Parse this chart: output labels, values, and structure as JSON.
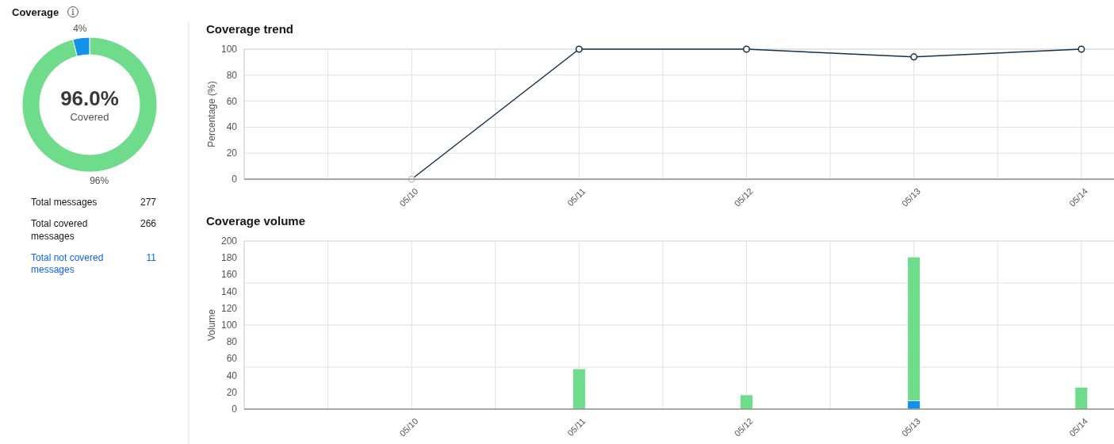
{
  "chart_data": [
    {
      "type": "donut",
      "title": "Coverage",
      "categories": [
        null,
        null
      ],
      "values": [
        96,
        4
      ],
      "colors": [
        "#6fdc8c",
        "#1192e8"
      ],
      "value_labels": [
        "96%",
        "4%"
      ],
      "annotations": [
        "96.0%",
        "Covered"
      ]
    },
    {
      "type": "other",
      "categories": [
        "Total messages",
        "Total covered messages",
        "Total not covered messages"
      ],
      "values": [
        277,
        266,
        11
      ],
      "colors": [
        "#161616",
        "#161616",
        "#0f62fe"
      ],
      "data_labels": true
    },
    {
      "type": "line",
      "title": "Coverage trend",
      "ylabel": "Percentage (%)",
      "categories": [
        "05/10",
        "05/11",
        "05/12",
        "05/13",
        "05/14"
      ],
      "series": [
        {
          "color": "#15304c",
          "colors": [
            "#c6c6c6",
            "#15304c",
            "#15304c",
            "#15304c",
            "#15304c"
          ],
          "values": [
            0,
            100,
            100,
            94,
            100
          ]
        }
      ],
      "ylim": [
        0,
        100
      ],
      "yticks": [
        0,
        20,
        40,
        60,
        80,
        100
      ],
      "grid": true,
      "marker": "circle"
    },
    {
      "type": "bar",
      "title": "Coverage volume",
      "ylabel": "Volume",
      "categories": [
        "05/10",
        "05/11",
        "05/12",
        "05/13",
        "05/14"
      ],
      "stacked": true,
      "series": [
        {
          "color": "#1192e8",
          "values": [
            null,
            null,
            null,
            10,
            null
          ]
        },
        {
          "color": "#6fdc8c",
          "values": [
            null,
            48,
            17,
            171,
            26
          ]
        }
      ],
      "ylim": [
        0,
        200
      ],
      "yticks": [
        0,
        20,
        40,
        60,
        80,
        100,
        120,
        140,
        160,
        180,
        200
      ],
      "grid": "x",
      "ref_lines": [
        {
          "axis": "y",
          "value": 50,
          "color": "#e0e0e0"
        },
        {
          "axis": "y",
          "value": 100,
          "color": "#e0e0e0"
        },
        {
          "axis": "y",
          "value": 150,
          "color": "#e0e0e0"
        }
      ]
    }
  ]
}
